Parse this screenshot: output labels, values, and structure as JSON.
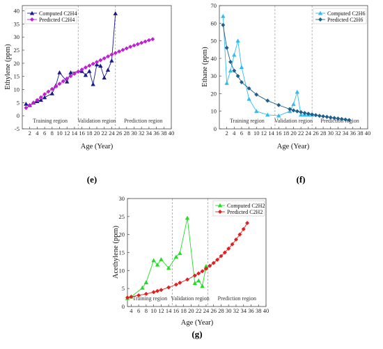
{
  "chart_data": [
    {
      "id": "e",
      "type": "line",
      "caption": "(e)",
      "xlabel": "Age (Year)",
      "ylabel": "Ethylene (ppm)",
      "xlim": [
        0,
        40
      ],
      "ylim": [
        -5,
        42
      ],
      "xticks": [
        2,
        4,
        6,
        8,
        10,
        12,
        14,
        16,
        18,
        20,
        22,
        24,
        26,
        28,
        30,
        32,
        34,
        36,
        38,
        40
      ],
      "yticks": [
        -5,
        0,
        5,
        10,
        15,
        20,
        25,
        30,
        35,
        40
      ],
      "regions": [
        {
          "label": "Training region",
          "x_start": 0,
          "x_end": 15
        },
        {
          "label": "Validation region",
          "x_start": 15,
          "x_end": 25
        },
        {
          "label": "Prediction region",
          "x_start": 25,
          "x_end": 40
        }
      ],
      "legend_position": "top-left",
      "series": [
        {
          "name": "Computed C2H4",
          "color": "#1a1a8c",
          "marker": "triangle",
          "x": [
            1,
            2,
            3,
            4,
            5,
            6,
            8,
            9,
            10,
            12,
            13,
            16,
            17,
            18,
            19,
            20,
            21,
            22,
            23,
            24,
            25
          ],
          "y": [
            4.5,
            4,
            5,
            5.5,
            6,
            7,
            8.5,
            11.5,
            16.5,
            13,
            16.5,
            17,
            15.5,
            17,
            12,
            19.5,
            19,
            14.5,
            17.5,
            21,
            39
          ]
        },
        {
          "name": "Predicted C2H4",
          "color": "#c020d0",
          "marker": "diamond",
          "x": [
            1,
            2,
            3,
            4,
            5,
            6,
            7,
            8,
            9,
            10,
            11,
            12,
            13,
            14,
            15,
            16,
            17,
            18,
            19,
            20,
            21,
            22,
            23,
            24,
            25,
            26,
            27,
            28,
            29,
            30,
            31,
            32,
            33,
            34,
            35
          ],
          "y": [
            3,
            4,
            5,
            6,
            7,
            8.2,
            9.2,
            10.2,
            11.2,
            12.2,
            13.2,
            14.2,
            15.1,
            16,
            16.8,
            17.6,
            18.4,
            19.1,
            19.8,
            20.5,
            21.2,
            21.9,
            22.6,
            23.3,
            23.9,
            24.5,
            25.1,
            25.7,
            26.3,
            26.8,
            27.3,
            27.8,
            28.3,
            28.8,
            29.2
          ]
        }
      ]
    },
    {
      "id": "f",
      "type": "line",
      "caption": "(f)",
      "xlabel": "Age (Year)",
      "ylabel": "Ethane (ppm)",
      "xlim": [
        0,
        40
      ],
      "ylim": [
        0,
        70
      ],
      "xticks": [
        2,
        4,
        6,
        8,
        10,
        12,
        14,
        16,
        18,
        20,
        22,
        24,
        26,
        28,
        30,
        32,
        34,
        36,
        38,
        40
      ],
      "yticks": [
        0,
        10,
        20,
        30,
        40,
        50,
        60,
        70
      ],
      "regions": [
        {
          "label": "Training region",
          "x_start": 0,
          "x_end": 15
        },
        {
          "label": "Validation region",
          "x_start": 15,
          "x_end": 25
        },
        {
          "label": "Prediction region",
          "x_start": 25,
          "x_end": 40
        }
      ],
      "legend_position": "top-right",
      "series": [
        {
          "name": "Computed C2H6",
          "color": "#33bbee",
          "marker": "triangle",
          "x": [
            1,
            2,
            3,
            4,
            5,
            6,
            8,
            10,
            13,
            16,
            19,
            20,
            21,
            22,
            23,
            24,
            25
          ],
          "y": [
            64,
            26,
            33,
            42,
            50,
            35,
            17,
            10,
            8,
            7.5,
            10,
            14,
            21,
            8,
            8,
            8,
            8
          ]
        },
        {
          "name": "Predicted C2H6",
          "color": "#1f5f8b",
          "marker": "diamond",
          "x": [
            1,
            2,
            3,
            4,
            5,
            6,
            8,
            10,
            13,
            16,
            19,
            20,
            21,
            22,
            23,
            24,
            25,
            26,
            27,
            28,
            29,
            30,
            31,
            32,
            33,
            34,
            35
          ],
          "y": [
            59,
            46,
            38,
            33,
            30,
            26.5,
            23,
            19.5,
            16,
            13.5,
            11.2,
            10.5,
            10,
            9.5,
            9,
            8.6,
            8.2,
            7.8,
            7.4,
            7.1,
            6.8,
            6.5,
            6.2,
            5.9,
            5.6,
            5.3,
            5
          ]
        }
      ]
    },
    {
      "id": "g",
      "type": "line",
      "caption": "(g)",
      "xlabel": "Age (Year)",
      "ylabel": "Acethylene (ppm)",
      "xlim": [
        3,
        40
      ],
      "ylim": [
        0,
        30
      ],
      "xticks": [
        4,
        6,
        8,
        10,
        12,
        14,
        16,
        18,
        20,
        22,
        24,
        26,
        28,
        30,
        32,
        34,
        36,
        38,
        40
      ],
      "yticks": [
        0,
        5,
        10,
        15,
        20,
        25,
        30
      ],
      "regions": [
        {
          "label": "Training region",
          "x_start": 3,
          "x_end": 15
        },
        {
          "label": "Validation region",
          "x_start": 15,
          "x_end": 24.5
        },
        {
          "label": "Prediction region",
          "x_start": 24.5,
          "x_end": 40
        }
      ],
      "legend_position": "top-right",
      "series": [
        {
          "name": "Computed C2H2",
          "color": "#22dd22",
          "marker": "triangle",
          "x": [
            3,
            4,
            7,
            8,
            10,
            11,
            12,
            14,
            16,
            17,
            19,
            21,
            22,
            23,
            24
          ],
          "y": [
            2.3,
            2.7,
            5.2,
            6.7,
            12.8,
            11.6,
            13.1,
            10.7,
            13.8,
            14.8,
            24.6,
            6.5,
            7.2,
            5.7,
            11.2
          ],
          "label_series": ""
        },
        {
          "name": "Predicted C2H2",
          "color": "#e02020",
          "marker": "diamond",
          "x": [
            3,
            4,
            6,
            8,
            10,
            11,
            12,
            14,
            16,
            17,
            19,
            21,
            22,
            23,
            24,
            25,
            26,
            27,
            28,
            29,
            30,
            31,
            32,
            33,
            34,
            35
          ],
          "y": [
            2.5,
            2.7,
            3.1,
            3.5,
            4,
            4.3,
            4.6,
            5.3,
            6.1,
            6.6,
            7.5,
            8.6,
            9.2,
            9.8,
            10.5,
            11.3,
            12.1,
            13,
            14,
            15,
            16.1,
            17.3,
            18.6,
            20,
            21.5,
            23.2
          ]
        }
      ]
    }
  ]
}
